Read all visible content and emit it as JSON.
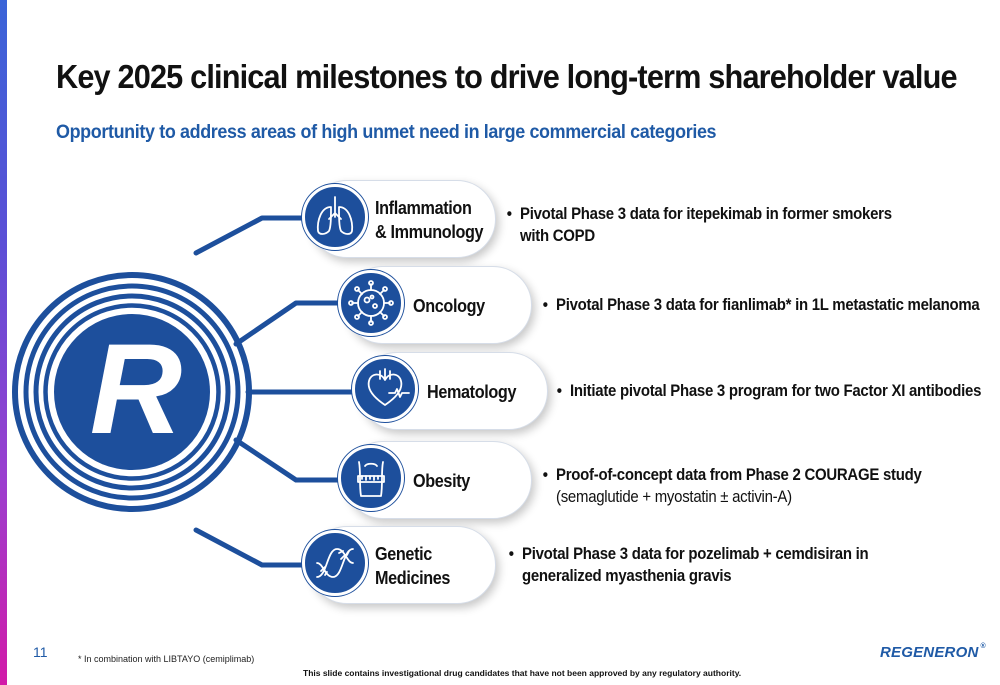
{
  "slide": {
    "title": "Key 2025 clinical milestones to drive long-term shareholder value",
    "subtitle": "Opportunity to address areas of high unmet need in large commercial categories",
    "page_number": "11",
    "footnote": "* In combination with LIBTAYO (cemiplimab)",
    "disclaimer": "This slide contains investigational drug candidates that have not been approved by any regulatory authority.",
    "logo_text": "REGENERON",
    "logo_mark": "®",
    "center_letter": "R"
  },
  "colors": {
    "brand_blue": "#1d4f9c",
    "subtitle_blue": "#1f5aa6",
    "accent_gradient_top": "#3a64d8",
    "accent_gradient_bottom": "#d21aa8"
  },
  "categories": [
    {
      "label_line1": "Inflammation",
      "label_line2": "& Immunology",
      "icon": "lungs-icon",
      "bullet": "Pivotal Phase 3 data for itepekimab in former smokers",
      "bullet_line2": "with COPD"
    },
    {
      "label_line1": "Oncology",
      "icon": "cancer-cell-icon",
      "bullet": "Pivotal Phase 3 data for fianlimab* in 1L metastatic melanoma"
    },
    {
      "label_line1": "Hematology",
      "icon": "heart-icon",
      "bullet": "Initiate pivotal Phase 3 program for two Factor XI antibodies"
    },
    {
      "label_line1": "Obesity",
      "icon": "waist-measure-icon",
      "bullet": "Proof-of-concept data from Phase 2 COURAGE study",
      "bullet_line2": "(semaglutide + myostatin ± activin-A)"
    },
    {
      "label_line1": "Genetic",
      "label_line2": "Medicines",
      "icon": "dna-icon",
      "bullet": "Pivotal Phase 3 data for pozelimab + cemdisiran in",
      "bullet_line2": "generalized myasthenia gravis"
    }
  ]
}
